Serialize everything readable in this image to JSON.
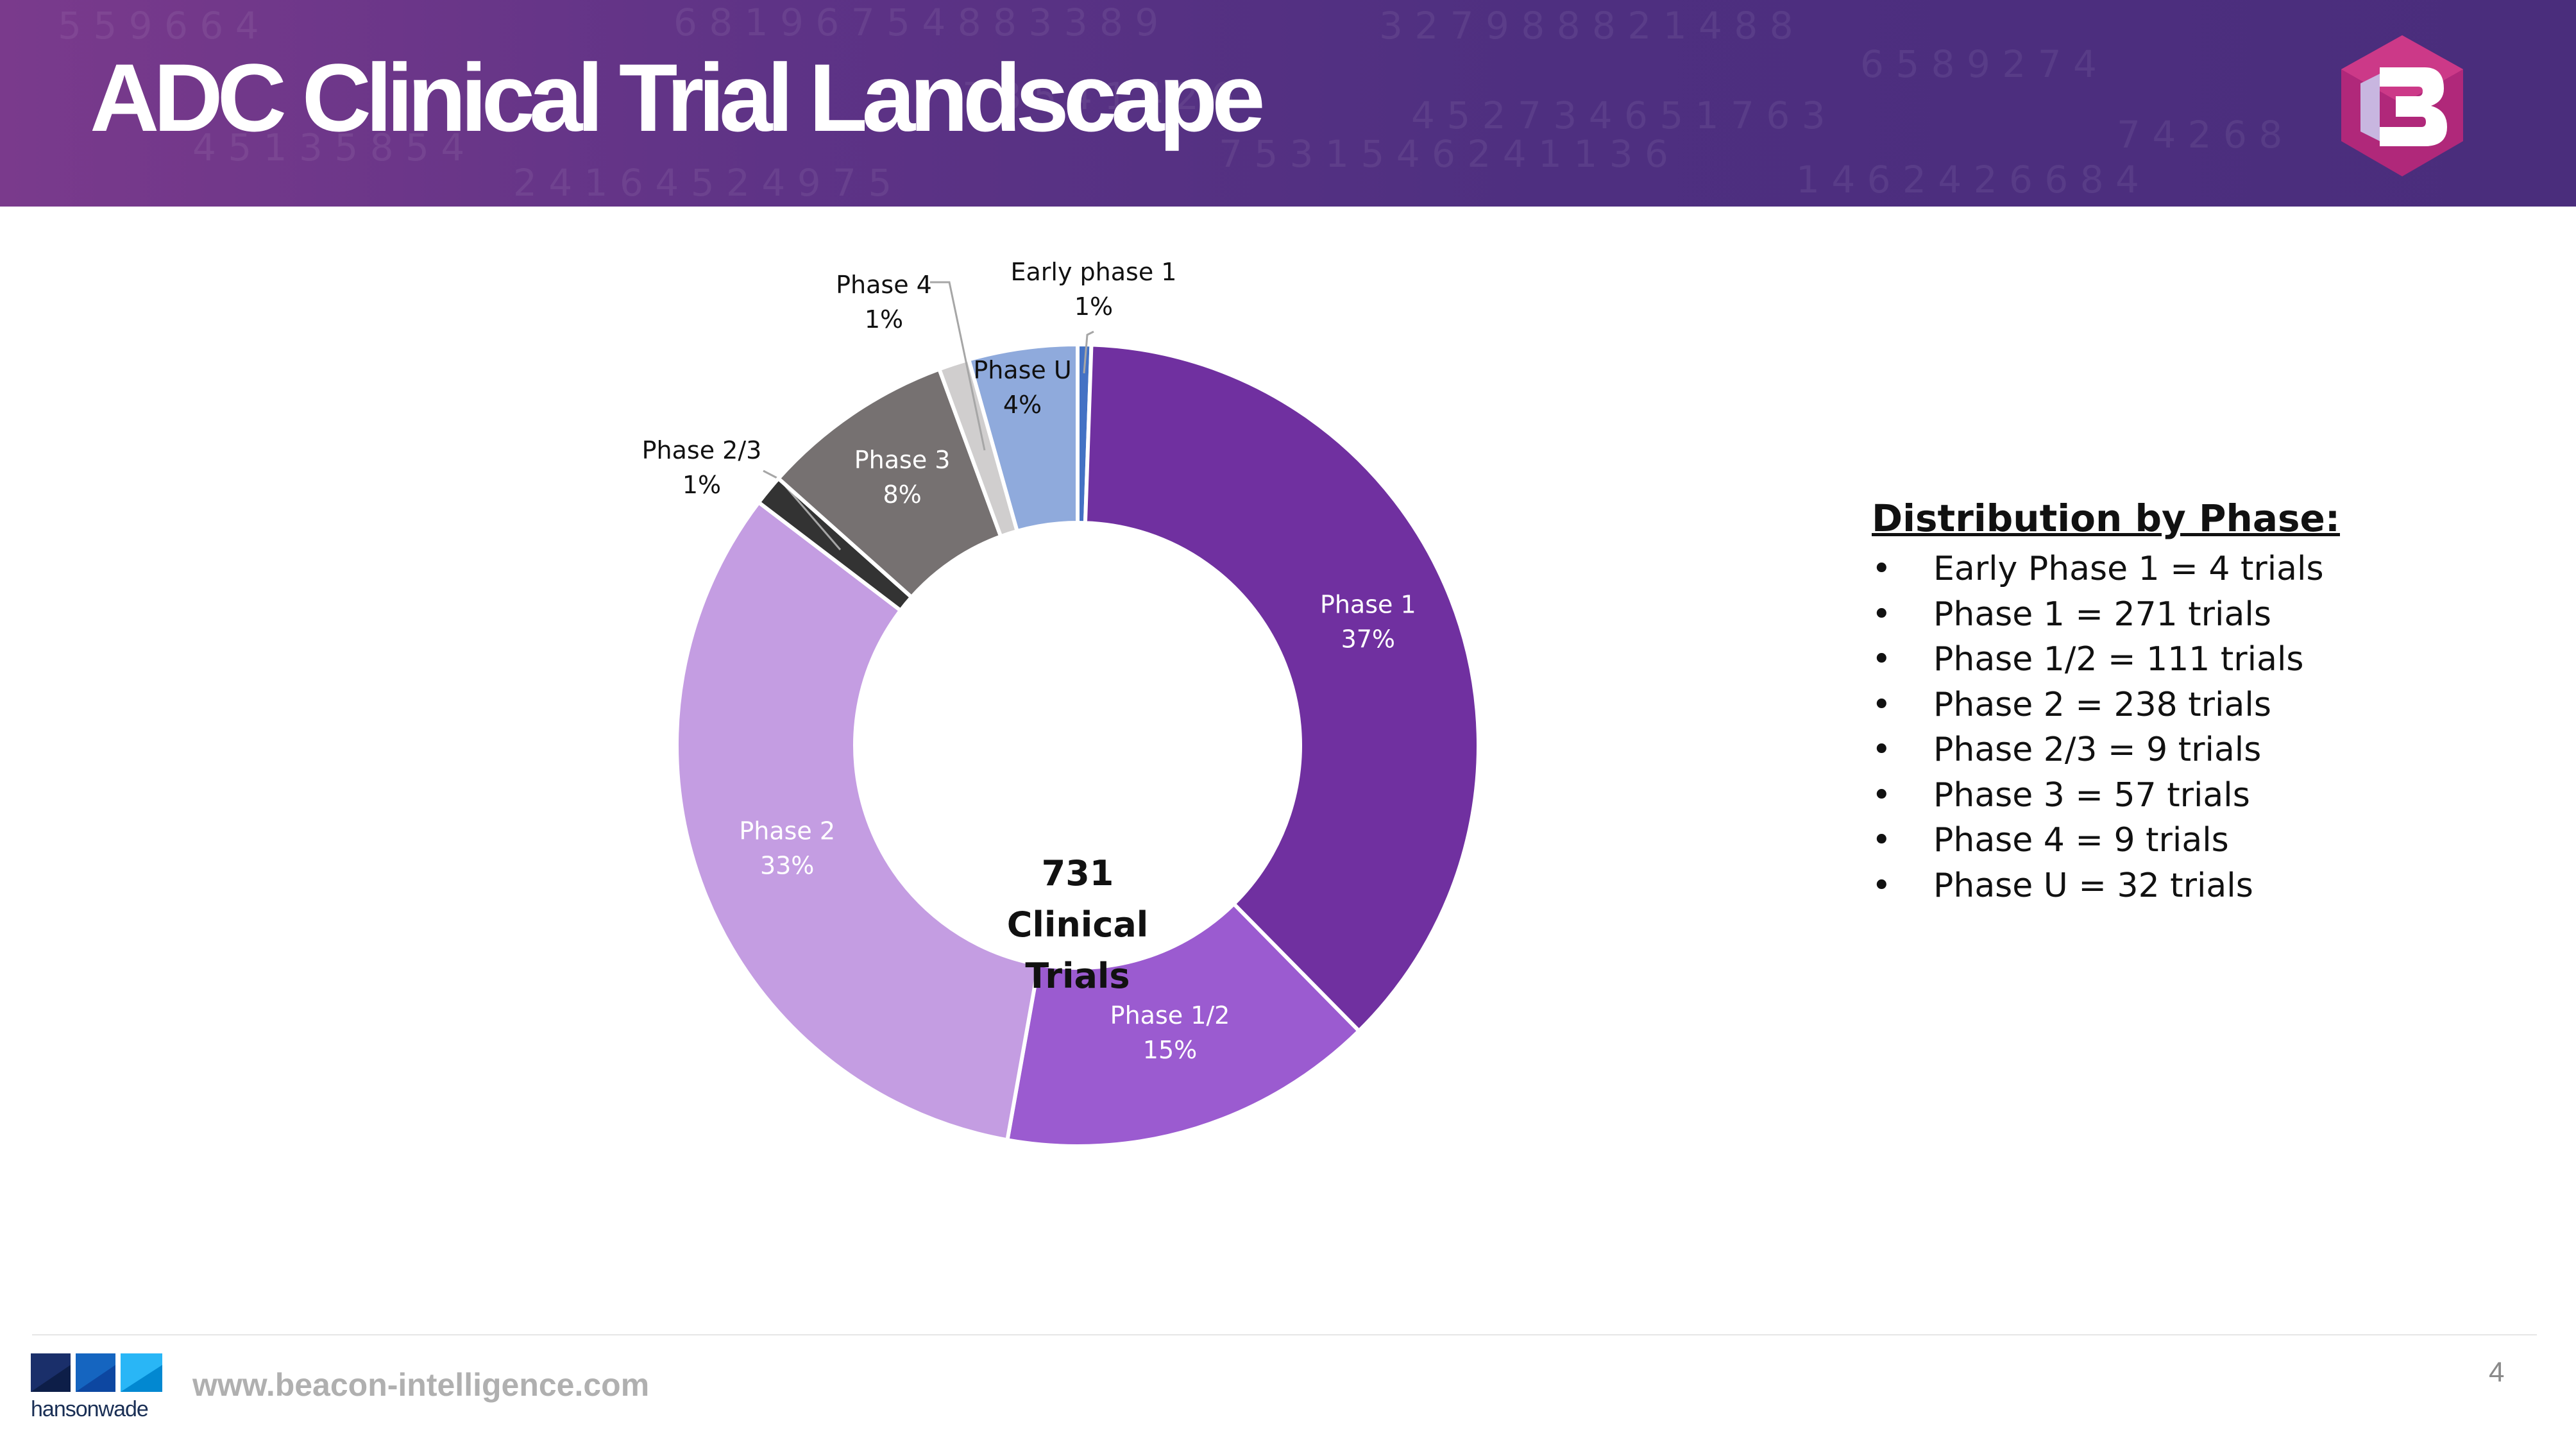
{
  "slide": {
    "title": "ADC Clinical Trial Landscape",
    "footer_url": "www.beacon-intelligence.com",
    "page_number": "4",
    "company_logo_text": "hansonwade"
  },
  "colors": {
    "header": "#5a3384",
    "title_text": "#ffffff",
    "logo_magenta": "#b0287a",
    "logo_white": "#ffffff"
  },
  "icons": {
    "brand_logo": "beacon-hexagon-b-logo",
    "company_logo": "hansonwade-logo"
  },
  "chart_data": {
    "type": "pie",
    "style": "donut",
    "center_label": [
      "731",
      "Clinical",
      "Trials"
    ],
    "slices": [
      {
        "name": "Early phase 1",
        "value": 4,
        "percent_label": "1%",
        "color": "#4472c4"
      },
      {
        "name": "Phase 1",
        "value": 271,
        "percent_label": "37%",
        "color": "#7030a0"
      },
      {
        "name": "Phase 1/2",
        "value": 111,
        "percent_label": "15%",
        "color": "#9b5bd0"
      },
      {
        "name": "Phase 2",
        "value": 238,
        "percent_label": "33%",
        "color": "#c49de2"
      },
      {
        "name": "Phase 2/3",
        "value": 9,
        "percent_label": "1%",
        "color": "#333333"
      },
      {
        "name": "Phase 3",
        "value": 57,
        "percent_label": "8%",
        "color": "#767171"
      },
      {
        "name": "Phase 4",
        "value": 9,
        "percent_label": "1%",
        "color": "#d0cece"
      },
      {
        "name": "Phase U",
        "value": 32,
        "percent_label": "4%",
        "color": "#8faadc"
      }
    ]
  },
  "legend": {
    "heading": "Distribution by Phase:",
    "items": [
      "Early Phase 1 = 4 trials",
      "Phase 1 = 271 trials",
      "Phase 1/2 = 111 trials",
      "Phase 2 = 238 trials",
      "Phase 2/3 = 9 trials",
      "Phase 3 = 57 trials",
      "Phase 4 = 9 trials",
      "Phase U = 32 trials"
    ]
  }
}
